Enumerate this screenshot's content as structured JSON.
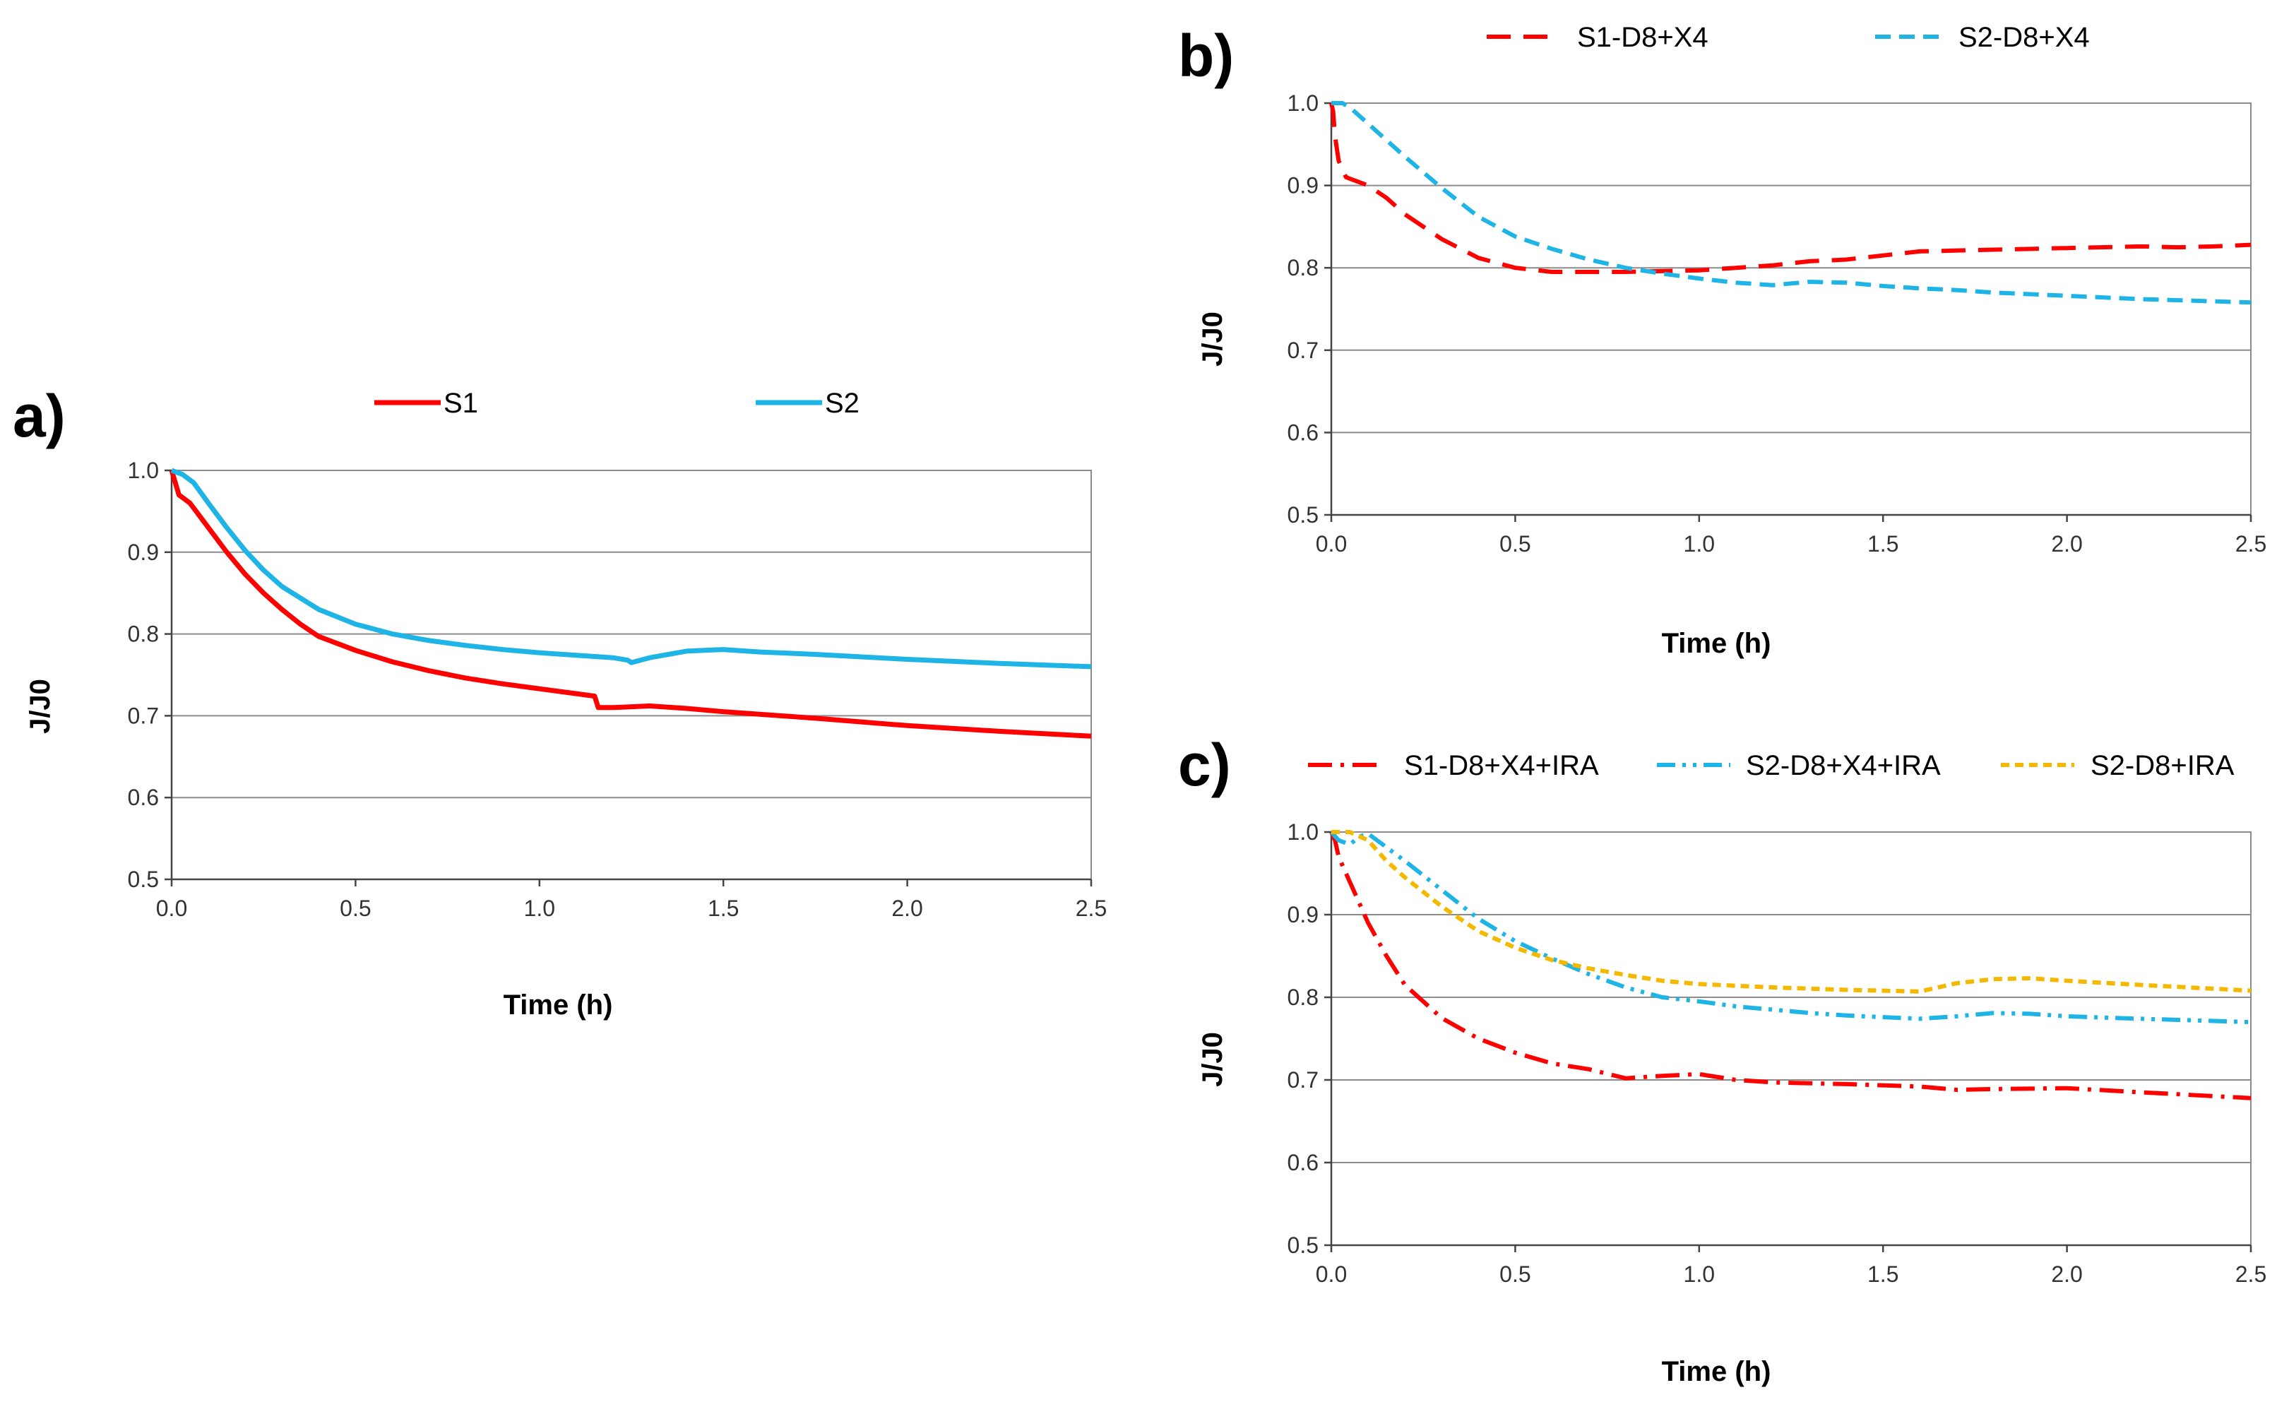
{
  "chart_data": [
    {
      "id": "a",
      "panel_label": "a)",
      "type": "line",
      "xlabel": "Time (h)",
      "ylabel": "J/J0",
      "xlim": [
        0,
        2.5
      ],
      "ylim": [
        0.5,
        1.0
      ],
      "xticks": [
        "0.0",
        "0.5",
        "1.0",
        "1.5",
        "2.0",
        "2.5"
      ],
      "yticks": [
        "0.5",
        "0.6",
        "0.7",
        "0.8",
        "0.9",
        "1.0"
      ],
      "grid": "horizontal",
      "legend_position": "top",
      "series": [
        {
          "name": "S1",
          "color": "#ff0000",
          "style": "solid",
          "x": [
            0,
            0.01,
            0.02,
            0.05,
            0.1,
            0.15,
            0.2,
            0.25,
            0.3,
            0.35,
            0.4,
            0.5,
            0.6,
            0.7,
            0.8,
            0.9,
            1.0,
            1.1,
            1.15,
            1.16,
            1.2,
            1.3,
            1.4,
            1.5,
            1.75,
            2.0,
            2.25,
            2.5
          ],
          "y": [
            1.0,
            0.985,
            0.97,
            0.96,
            0.93,
            0.9,
            0.873,
            0.85,
            0.83,
            0.812,
            0.797,
            0.78,
            0.766,
            0.755,
            0.746,
            0.739,
            0.733,
            0.727,
            0.724,
            0.71,
            0.71,
            0.712,
            0.709,
            0.705,
            0.697,
            0.688,
            0.681,
            0.675
          ]
        },
        {
          "name": "S2",
          "color": "#1eb4e6",
          "style": "solid",
          "x": [
            0,
            0.03,
            0.06,
            0.1,
            0.15,
            0.2,
            0.25,
            0.3,
            0.4,
            0.5,
            0.6,
            0.7,
            0.8,
            0.9,
            1.0,
            1.1,
            1.2,
            1.24,
            1.25,
            1.3,
            1.4,
            1.5,
            1.6,
            1.75,
            2.0,
            2.25,
            2.5
          ],
          "y": [
            1.0,
            0.995,
            0.985,
            0.96,
            0.93,
            0.902,
            0.878,
            0.858,
            0.83,
            0.812,
            0.8,
            0.792,
            0.786,
            0.781,
            0.777,
            0.774,
            0.771,
            0.768,
            0.765,
            0.771,
            0.779,
            0.781,
            0.778,
            0.775,
            0.769,
            0.764,
            0.76
          ]
        }
      ]
    },
    {
      "id": "b",
      "panel_label": "b)",
      "type": "line",
      "xlabel": "Time (h)",
      "ylabel": "J/J0",
      "xlim": [
        0,
        2.5
      ],
      "ylim": [
        0.5,
        1.0
      ],
      "xticks": [
        "0.0",
        "0.5",
        "1.0",
        "1.5",
        "2.0",
        "2.5"
      ],
      "yticks": [
        "0.5",
        "0.6",
        "0.7",
        "0.8",
        "0.9",
        "1.0"
      ],
      "grid": "horizontal",
      "legend_position": "top",
      "series": [
        {
          "name": "S1-D8+X4",
          "color": "#ff0000",
          "style": "long-dash",
          "x": [
            0,
            0.005,
            0.01,
            0.02,
            0.04,
            0.07,
            0.1,
            0.15,
            0.2,
            0.3,
            0.4,
            0.5,
            0.6,
            0.8,
            1.0,
            1.1,
            1.2,
            1.3,
            1.4,
            1.5,
            1.6,
            1.8,
            2.0,
            2.2,
            2.3,
            2.4,
            2.5
          ],
          "y": [
            1.0,
            0.99,
            0.96,
            0.93,
            0.91,
            0.905,
            0.9,
            0.885,
            0.865,
            0.835,
            0.812,
            0.8,
            0.795,
            0.795,
            0.797,
            0.8,
            0.803,
            0.808,
            0.81,
            0.815,
            0.82,
            0.822,
            0.824,
            0.826,
            0.825,
            0.826,
            0.828
          ]
        },
        {
          "name": "S2-D8+X4",
          "color": "#1eb4e6",
          "style": "dash",
          "x": [
            0,
            0.03,
            0.05,
            0.1,
            0.2,
            0.3,
            0.4,
            0.5,
            0.6,
            0.7,
            0.8,
            0.9,
            1.0,
            1.1,
            1.2,
            1.3,
            1.4,
            1.5,
            1.6,
            1.7,
            1.8,
            2.0,
            2.2,
            2.5
          ],
          "y": [
            1.0,
            1.0,
            0.995,
            0.975,
            0.935,
            0.897,
            0.862,
            0.838,
            0.823,
            0.81,
            0.8,
            0.793,
            0.787,
            0.782,
            0.779,
            0.783,
            0.782,
            0.778,
            0.775,
            0.773,
            0.77,
            0.766,
            0.762,
            0.758
          ]
        }
      ]
    },
    {
      "id": "c",
      "panel_label": "c)",
      "type": "line",
      "xlabel": "Time (h)",
      "ylabel": "J/J0",
      "xlim": [
        0,
        2.5
      ],
      "ylim": [
        0.5,
        1.0
      ],
      "xticks": [
        "0.0",
        "0.5",
        "1.0",
        "1.5",
        "2.0",
        "2.5"
      ],
      "yticks": [
        "0.5",
        "0.6",
        "0.7",
        "0.8",
        "0.9",
        "1.0"
      ],
      "grid": "horizontal",
      "legend_position": "top",
      "series": [
        {
          "name": "S1-D8+X4+IRA",
          "color": "#ff0000",
          "style": "dash-dot",
          "x": [
            0,
            0.01,
            0.02,
            0.04,
            0.07,
            0.1,
            0.15,
            0.2,
            0.3,
            0.4,
            0.5,
            0.6,
            0.7,
            0.8,
            0.9,
            1.0,
            1.1,
            1.2,
            1.4,
            1.6,
            1.7,
            1.8,
            2.0,
            2.2,
            2.5
          ],
          "y": [
            1.0,
            0.99,
            0.97,
            0.95,
            0.92,
            0.89,
            0.85,
            0.815,
            0.775,
            0.75,
            0.733,
            0.72,
            0.713,
            0.702,
            0.705,
            0.707,
            0.7,
            0.697,
            0.695,
            0.692,
            0.688,
            0.689,
            0.69,
            0.685,
            0.678
          ]
        },
        {
          "name": "S2-D8+X4+IRA",
          "color": "#1eb4e6",
          "style": "dash-dot-dot",
          "x": [
            0,
            0.02,
            0.05,
            0.08,
            0.1,
            0.2,
            0.3,
            0.4,
            0.5,
            0.6,
            0.7,
            0.8,
            0.9,
            1.0,
            1.1,
            1.2,
            1.3,
            1.4,
            1.5,
            1.6,
            1.7,
            1.8,
            1.9,
            2.0,
            2.2,
            2.5
          ],
          "y": [
            1.0,
            0.99,
            0.985,
            0.995,
            0.998,
            0.965,
            0.93,
            0.895,
            0.868,
            0.847,
            0.828,
            0.812,
            0.8,
            0.795,
            0.789,
            0.785,
            0.781,
            0.778,
            0.776,
            0.774,
            0.777,
            0.781,
            0.78,
            0.777,
            0.774,
            0.77
          ]
        },
        {
          "name": "S2-D8+IRA",
          "color": "#f5b800",
          "style": "short-dash",
          "x": [
            0,
            0.05,
            0.1,
            0.15,
            0.2,
            0.3,
            0.4,
            0.5,
            0.6,
            0.7,
            0.8,
            0.9,
            1.0,
            1.2,
            1.4,
            1.6,
            1.7,
            1.8,
            1.9,
            2.0,
            2.2,
            2.5
          ],
          "y": [
            1.0,
            1.0,
            0.99,
            0.965,
            0.945,
            0.91,
            0.88,
            0.86,
            0.845,
            0.835,
            0.827,
            0.82,
            0.816,
            0.812,
            0.809,
            0.807,
            0.817,
            0.822,
            0.823,
            0.82,
            0.815,
            0.808
          ]
        }
      ]
    }
  ]
}
